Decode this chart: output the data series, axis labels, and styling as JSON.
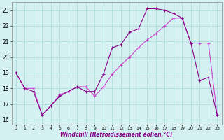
{
  "xlabel": "Windchill (Refroidissement éolien,°C)",
  "xlim": [
    -0.5,
    23.5
  ],
  "ylim": [
    15.7,
    23.5
  ],
  "yticks": [
    16,
    17,
    18,
    19,
    20,
    21,
    22,
    23
  ],
  "xticks": [
    0,
    1,
    2,
    3,
    4,
    5,
    6,
    7,
    8,
    9,
    10,
    11,
    12,
    13,
    14,
    15,
    16,
    17,
    18,
    19,
    20,
    21,
    22,
    23
  ],
  "bg_color": "#d4f0f0",
  "line_color1": "#880088",
  "line_color2": "#cc44cc",
  "grid_color": "#b0dede",
  "line1_x": [
    0,
    1,
    2,
    3,
    4,
    5,
    6,
    7,
    8,
    9,
    10,
    11,
    12,
    13,
    14,
    15,
    16,
    17,
    18,
    19,
    20,
    21,
    22,
    23
  ],
  "line1_y": [
    19.0,
    18.0,
    17.8,
    16.3,
    16.9,
    17.5,
    17.8,
    18.1,
    17.8,
    17.8,
    18.9,
    20.6,
    20.8,
    21.6,
    21.8,
    23.1,
    23.1,
    23.0,
    22.8,
    22.5,
    20.9,
    18.5,
    18.7,
    16.3
  ],
  "line2_x": [
    0,
    1,
    2,
    3,
    4,
    5,
    6,
    7,
    8,
    9,
    10,
    11,
    12,
    13,
    14,
    15,
    16,
    17,
    18,
    19,
    20,
    21,
    22,
    23
  ],
  "line2_y": [
    19.0,
    18.0,
    18.0,
    16.3,
    16.9,
    17.6,
    17.8,
    18.1,
    18.1,
    17.5,
    18.1,
    18.9,
    19.5,
    20.0,
    20.6,
    21.1,
    21.5,
    22.0,
    22.5,
    22.5,
    20.9,
    20.9,
    20.9,
    16.3
  ]
}
